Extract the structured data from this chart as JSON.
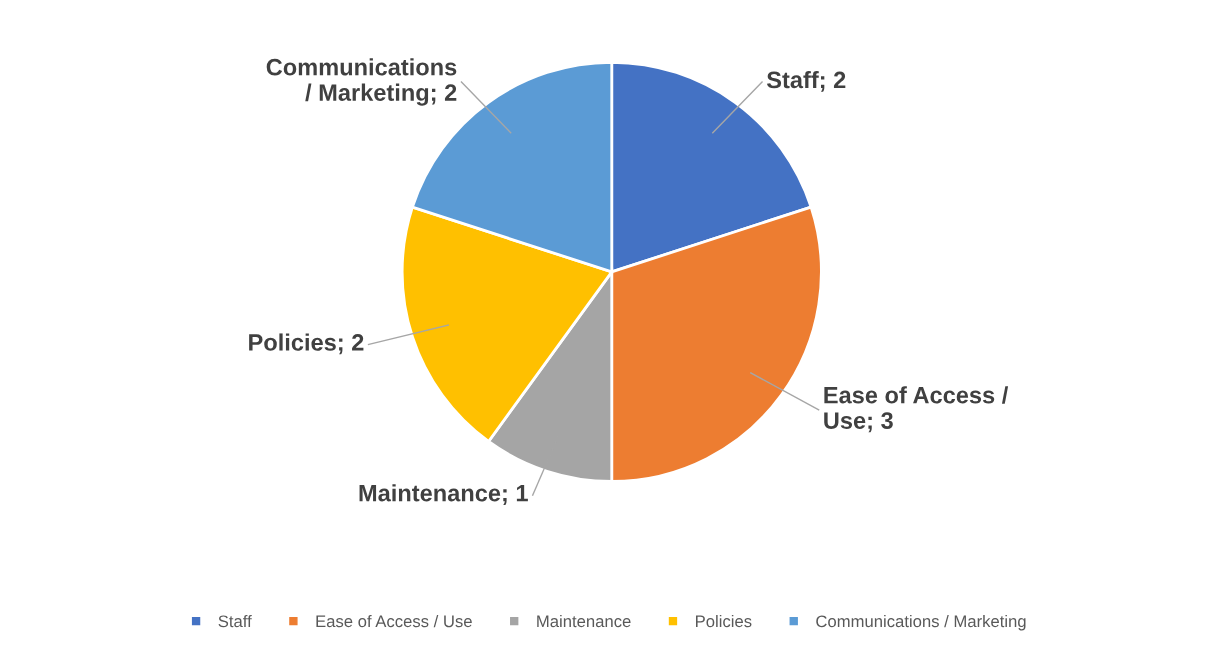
{
  "chart_data": {
    "type": "pie",
    "categories": [
      "Staff",
      "Ease of Access / Use",
      "Maintenance",
      "Policies",
      "Communications / Marketing"
    ],
    "values": [
      2,
      3,
      1,
      2,
      2
    ],
    "colors": [
      "#4472c4",
      "#ed7d31",
      "#a5a5a5",
      "#ffc000",
      "#5b9bd5"
    ],
    "value_labels": [
      "Staff; 2",
      "Ease of Access /\nUse; 3",
      "Maintenance; 1",
      "Policies; 2",
      "Communications\n/ Marketing; 2"
    ],
    "legend": "bottom"
  }
}
